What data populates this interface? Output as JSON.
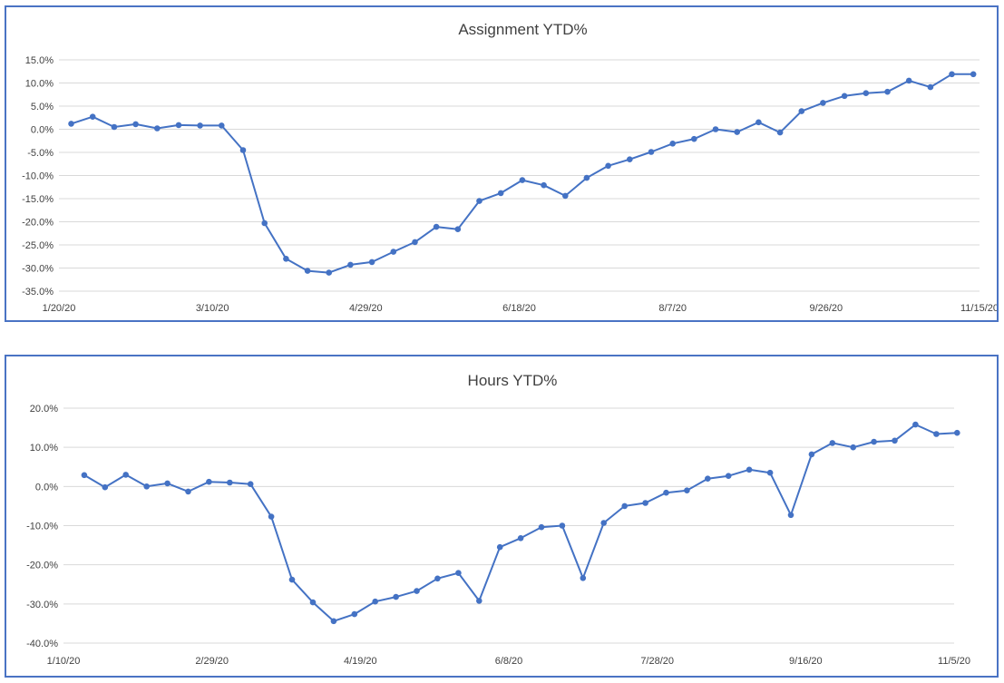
{
  "chart_data": [
    {
      "type": "line",
      "title": "Assignment YTD%",
      "xlabel": "",
      "ylabel": "",
      "x_tick_labels": [
        "1/20/20",
        "3/10/20",
        "4/29/20",
        "6/18/20",
        "8/7/20",
        "9/26/20",
        "11/15/20"
      ],
      "y_tick_labels": [
        "15.0%",
        "10.0%",
        "5.0%",
        "0.0%",
        "-5.0%",
        "-10.0%",
        "-15.0%",
        "-20.0%",
        "-25.0%",
        "-30.0%",
        "-35.0%"
      ],
      "ylim": [
        -35,
        15
      ],
      "xlim": [
        "1/20/20",
        "11/15/20"
      ],
      "grid": true,
      "legend": "none",
      "color": "#4472c4",
      "x": [
        "1/24/20",
        "1/31/20",
        "2/7/20",
        "2/14/20",
        "2/21/20",
        "2/28/20",
        "3/6/20",
        "3/13/20",
        "3/20/20",
        "3/27/20",
        "4/3/20",
        "4/10/20",
        "4/17/20",
        "4/24/20",
        "5/1/20",
        "5/8/20",
        "5/15/20",
        "5/22/20",
        "5/29/20",
        "6/5/20",
        "6/12/20",
        "6/19/20",
        "6/26/20",
        "7/3/20",
        "7/10/20",
        "7/17/20",
        "7/24/20",
        "7/31/20",
        "8/7/20",
        "8/14/20",
        "8/21/20",
        "8/28/20",
        "9/4/20",
        "9/11/20",
        "9/18/20",
        "9/25/20",
        "10/2/20",
        "10/9/20",
        "10/16/20",
        "10/23/20",
        "10/30/20",
        "11/6/20",
        "11/13/20"
      ],
      "values": [
        1.2,
        2.7,
        0.5,
        1.1,
        0.2,
        0.9,
        0.8,
        0.8,
        -4.5,
        -20.3,
        -28.0,
        -30.6,
        -31.0,
        -29.3,
        -28.7,
        -26.5,
        -24.4,
        -21.1,
        -21.6,
        -15.5,
        -13.8,
        -11.0,
        -12.1,
        -14.4,
        -10.5,
        -7.9,
        -6.5,
        -4.9,
        -3.1,
        -2.1,
        0.0,
        -0.6,
        1.5,
        -0.7,
        3.9,
        5.7,
        7.2,
        7.8,
        8.1,
        10.5,
        9.1,
        11.9,
        11.9
      ]
    },
    {
      "type": "line",
      "title": "Hours YTD%",
      "xlabel": "",
      "ylabel": "",
      "x_tick_labels": [
        "1/10/20",
        "2/29/20",
        "4/19/20",
        "6/8/20",
        "7/28/20",
        "9/16/20",
        "11/5/20"
      ],
      "y_tick_labels": [
        "20.0%",
        "10.0%",
        "0.0%",
        "-10.0%",
        "-20.0%",
        "-30.0%",
        "-40.0%"
      ],
      "ylim": [
        -40,
        20
      ],
      "xlim": [
        "1/10/20",
        "11/5/20"
      ],
      "grid": true,
      "legend": "none",
      "color": "#4472c4",
      "x": [
        "1/17/20",
        "1/24/20",
        "1/31/20",
        "2/7/20",
        "2/14/20",
        "2/21/20",
        "2/28/20",
        "3/6/20",
        "3/13/20",
        "3/20/20",
        "3/27/20",
        "4/3/20",
        "4/10/20",
        "4/17/20",
        "4/24/20",
        "5/1/20",
        "5/8/20",
        "5/15/20",
        "5/22/20",
        "5/29/20",
        "6/5/20",
        "6/12/20",
        "6/19/20",
        "6/26/20",
        "7/3/20",
        "7/10/20",
        "7/17/20",
        "7/24/20",
        "7/31/20",
        "8/7/20",
        "8/14/20",
        "8/21/20",
        "8/28/20",
        "9/4/20",
        "9/11/20",
        "9/18/20",
        "9/25/20",
        "10/2/20",
        "10/9/20",
        "10/16/20",
        "10/23/20",
        "10/30/20",
        "11/6/20"
      ],
      "values": [
        2.9,
        -0.2,
        3.0,
        0.0,
        0.8,
        -1.3,
        1.2,
        1.0,
        0.6,
        -7.7,
        -23.8,
        -29.6,
        -34.4,
        -32.6,
        -29.4,
        -28.2,
        -26.7,
        -23.5,
        -22.1,
        -29.2,
        -15.5,
        -13.2,
        -10.4,
        -10.0,
        -23.4,
        -9.3,
        -5.0,
        -4.2,
        -1.6,
        -1.0,
        2.0,
        2.7,
        4.3,
        3.5,
        -7.3,
        8.2,
        11.1,
        10.0,
        11.4,
        11.7,
        15.8,
        13.4,
        13.7
      ]
    }
  ]
}
